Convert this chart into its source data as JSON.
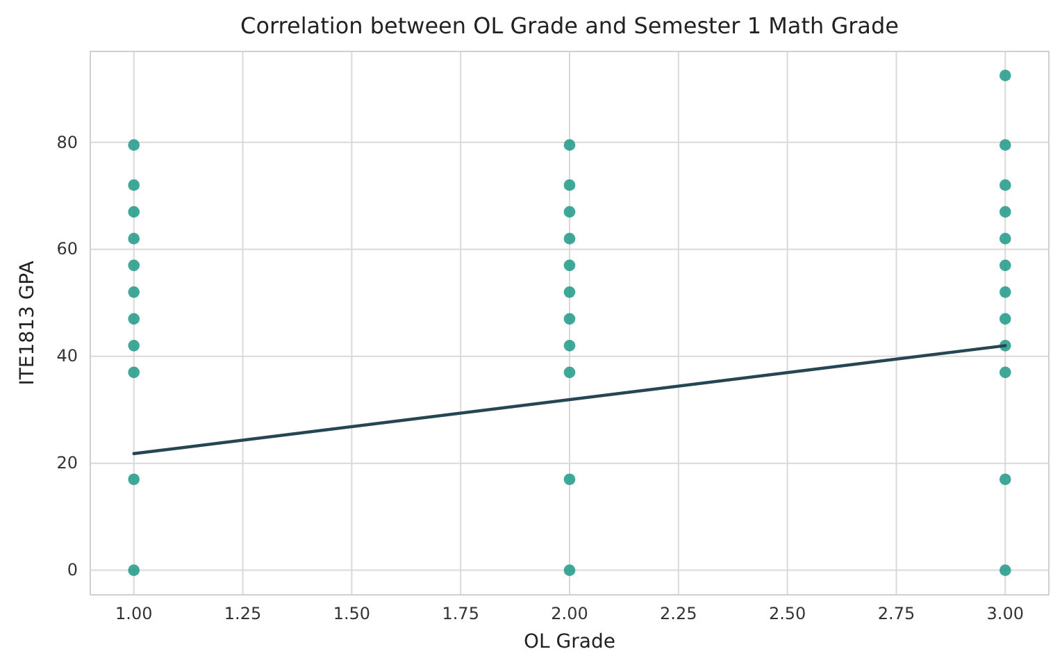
{
  "chart_data": {
    "type": "scatter",
    "title": "Correlation between OL Grade and Semester 1 Math Grade",
    "xlabel": "OL Grade",
    "ylabel": "ITE1813 GPA",
    "xlim": [
      0.9,
      3.1
    ],
    "xticks": [
      {
        "value": 1,
        "label": "1.00"
      },
      {
        "value": 1.25,
        "label": "1.25"
      },
      {
        "value": 1.5,
        "label": "1.50"
      },
      {
        "value": 1.75,
        "label": "1.75"
      },
      {
        "value": 2,
        "label": "2.00"
      },
      {
        "value": 2.25,
        "label": "2.25"
      },
      {
        "value": 2.5,
        "label": "2.50"
      },
      {
        "value": 2.75,
        "label": "2.75"
      },
      {
        "value": 3,
        "label": "3.00"
      }
    ],
    "ylim": [
      -4.6,
      97
    ],
    "yticks": [
      0,
      20,
      40,
      60,
      80
    ],
    "grid": true,
    "series": [
      {
        "marker": "circle",
        "color": "#1f9986",
        "x": [
          1,
          1,
          1,
          1,
          1,
          1,
          1,
          1,
          1,
          1,
          1,
          2,
          2,
          2,
          2,
          2,
          2,
          2,
          2,
          2,
          2,
          2,
          3,
          3,
          3,
          3,
          3,
          3,
          3,
          3,
          3,
          3,
          3,
          3
        ],
        "values": [
          79.5,
          72,
          67,
          62,
          57,
          52,
          47,
          42,
          37,
          17,
          0,
          79.5,
          72,
          67,
          62,
          57,
          52,
          47,
          42,
          37,
          17,
          0,
          92.5,
          79.5,
          72,
          67,
          62,
          57,
          52,
          47,
          42,
          37,
          17,
          0
        ]
      },
      {
        "type": "line",
        "marker": "none",
        "color": "#264653",
        "x": [
          1,
          3
        ],
        "values": [
          21.8,
          42
        ]
      }
    ]
  }
}
